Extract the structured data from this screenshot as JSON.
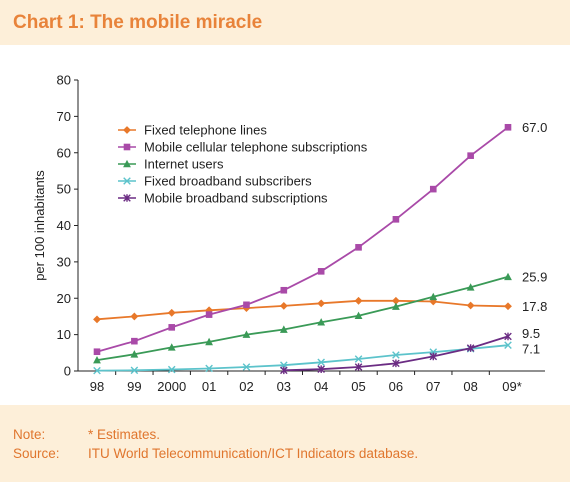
{
  "title": "Chart 1: The mobile miracle",
  "notes": [
    {
      "label": "Note:",
      "text": "* Estimates."
    },
    {
      "label": "Source:",
      "text": "ITU World Telecommunication/ICT Indicators database."
    }
  ],
  "chart_data": {
    "type": "line",
    "ylabel": "per 100 inhabitants",
    "xlabel": "",
    "ylim": [
      0,
      80
    ],
    "yticks": [
      0,
      10,
      20,
      30,
      40,
      50,
      60,
      70,
      80
    ],
    "categories": [
      "98",
      "99",
      "2000",
      "01",
      "02",
      "03",
      "04",
      "05",
      "06",
      "07",
      "08",
      "09*"
    ],
    "grid": false,
    "legend_position": "top-left",
    "series": [
      {
        "name": "Fixed telephone lines",
        "color": "#e8782a",
        "marker": "diamond",
        "values": [
          14.2,
          15.0,
          16.0,
          16.7,
          17.3,
          17.9,
          18.6,
          19.3,
          19.3,
          19.1,
          18.0,
          17.8
        ]
      },
      {
        "name": "Mobile cellular telephone subscriptions",
        "color": "#a94aa8",
        "marker": "square",
        "values": [
          5.3,
          8.2,
          12.0,
          15.5,
          18.2,
          22.2,
          27.4,
          34.0,
          41.7,
          50.0,
          59.2,
          67.0
        ]
      },
      {
        "name": "Internet users",
        "color": "#3a9a57",
        "marker": "triangle",
        "values": [
          3.0,
          4.6,
          6.5,
          8.0,
          10.0,
          11.4,
          13.4,
          15.2,
          17.7,
          20.4,
          23.0,
          25.9
        ]
      },
      {
        "name": "Fixed broadband subscribers",
        "color": "#5cc3cb",
        "marker": "x",
        "values": [
          0.1,
          0.2,
          0.4,
          0.7,
          1.1,
          1.6,
          2.4,
          3.3,
          4.4,
          5.2,
          6.1,
          7.1
        ]
      },
      {
        "name": "Mobile broadband subscriptions",
        "color": "#6b2c83",
        "marker": "star",
        "values": [
          null,
          null,
          null,
          null,
          null,
          0.2,
          0.5,
          1.1,
          2.1,
          4.0,
          6.3,
          9.5
        ]
      }
    ],
    "end_labels": [
      "17.8",
      "67.0",
      "25.9",
      "7.1",
      "9.5"
    ]
  }
}
